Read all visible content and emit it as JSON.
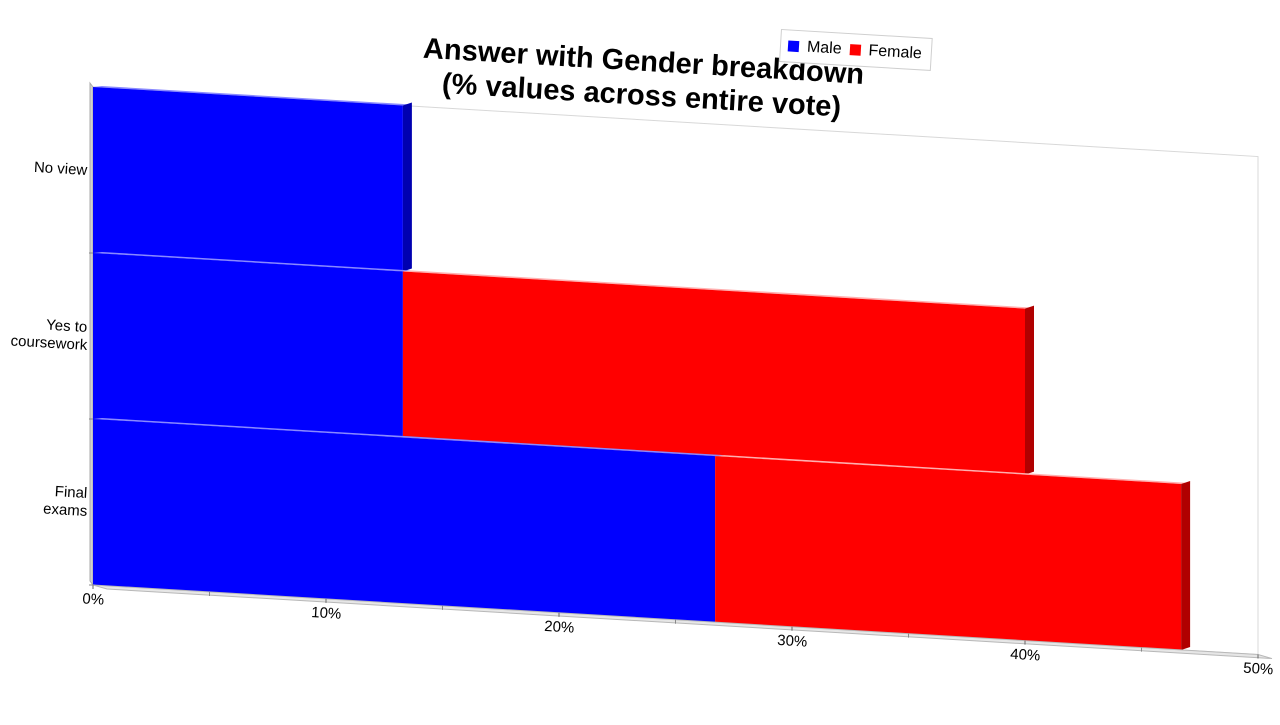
{
  "chart_data": {
    "type": "bar",
    "orientation": "horizontal",
    "stacked": true,
    "title_lines": [
      "Answer with Gender breakdown",
      "(% values across entire vote)"
    ],
    "categories": [
      "No view",
      "Yes to coursework",
      "Final exams"
    ],
    "category_label_lines": [
      [
        "No view"
      ],
      [
        "Yes to",
        "coursework"
      ],
      [
        "Final",
        "exams"
      ]
    ],
    "series": [
      {
        "name": "Male",
        "color": "#0000ff",
        "values": [
          13.3,
          13.3,
          26.7
        ]
      },
      {
        "name": "Female",
        "color": "#ff0000",
        "values": [
          0,
          26.7,
          20.0
        ]
      }
    ],
    "xlim": [
      0,
      50
    ],
    "xticks": [
      0,
      10,
      20,
      30,
      40,
      50
    ],
    "xtick_labels": [
      "0%",
      "10%",
      "20%",
      "30%",
      "40%",
      "50%"
    ],
    "legend_position": "top-right",
    "grid": false
  }
}
